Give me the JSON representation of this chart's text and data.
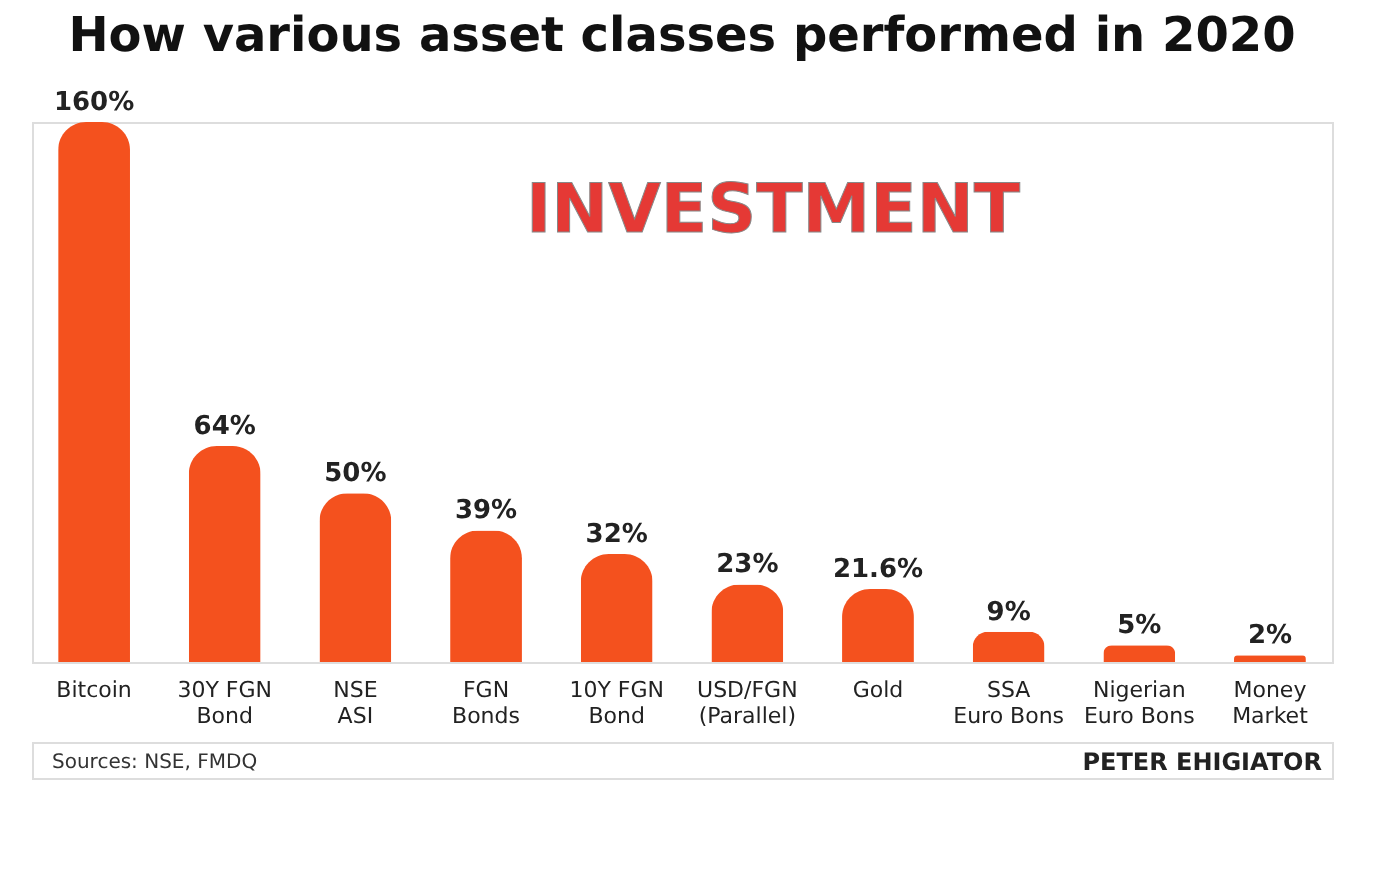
{
  "chart_data": {
    "type": "bar",
    "title": "How various asset classes performed in 2020",
    "categories": [
      "Bitcoin",
      "30Y FGN\nBond",
      "NSE\nASI",
      "FGN\nBonds",
      "10Y FGN\nBond",
      "USD/FGN\n(Parallel)",
      "Gold",
      "SSA\nEuro Bons",
      "Nigerian\nEuro Bons",
      "Money\nMarket"
    ],
    "values": [
      160,
      64,
      50,
      39,
      32,
      23,
      21.6,
      9,
      5,
      2
    ],
    "value_labels": [
      "160%",
      "64%",
      "50%",
      "39%",
      "32%",
      "23%",
      "21.6%",
      "9%",
      "5%",
      "2%"
    ],
    "color": "#f4511e",
    "annotations": [
      "INVESTMENT",
      "Sources: NSE, FMDQ",
      "PETER EHIGIATOR"
    ],
    "grid": false
  }
}
